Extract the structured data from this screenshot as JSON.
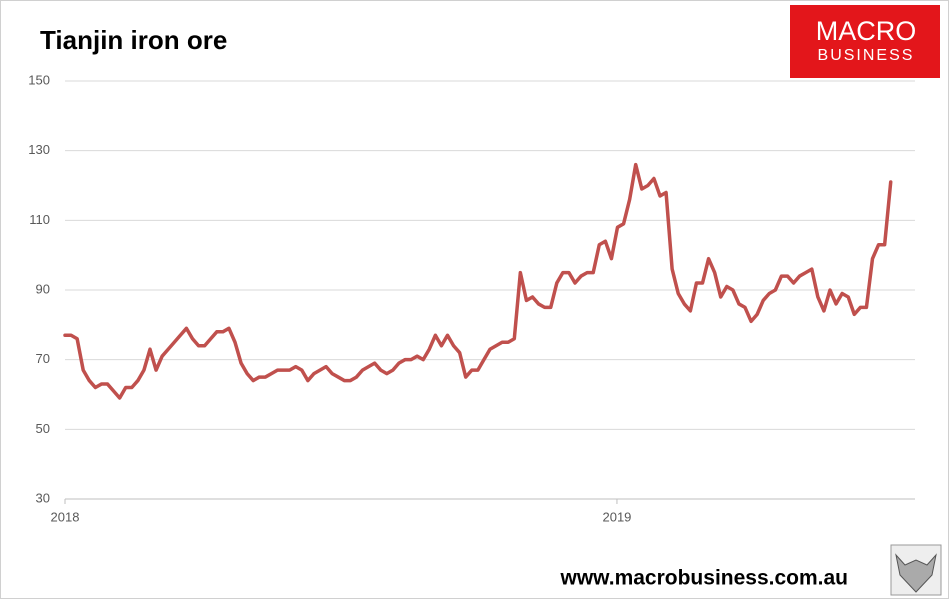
{
  "chart_data": {
    "type": "line",
    "title": "Tianjin iron ore",
    "logo": {
      "line1": "MACRO",
      "line2": "BUSINESS"
    },
    "footer": "www.macrobusiness.com.au",
    "color": "#c0504d",
    "x": [
      2018,
      2018.011,
      2018.022,
      2018.033,
      2018.044,
      2018.055,
      2018.066,
      2018.077,
      2018.088,
      2018.099,
      2018.11,
      2018.121,
      2018.132,
      2018.143,
      2018.154,
      2018.165,
      2018.176,
      2018.187,
      2018.198,
      2018.209,
      2018.22,
      2018.231,
      2018.242,
      2018.253,
      2018.264,
      2018.275,
      2018.286,
      2018.297,
      2018.308,
      2018.319,
      2018.33,
      2018.341,
      2018.352,
      2018.363,
      2018.374,
      2018.385,
      2018.396,
      2018.407,
      2018.418,
      2018.429,
      2018.44,
      2018.451,
      2018.462,
      2018.473,
      2018.484,
      2018.495,
      2018.506,
      2018.517,
      2018.528,
      2018.539,
      2018.55,
      2018.561,
      2018.572,
      2018.583,
      2018.594,
      2018.605,
      2018.616,
      2018.627,
      2018.638,
      2018.649,
      2018.66,
      2018.671,
      2018.682,
      2018.693,
      2018.704,
      2018.715,
      2018.726,
      2018.737,
      2018.748,
      2018.759,
      2018.77,
      2018.781,
      2018.792,
      2018.803,
      2018.814,
      2018.825,
      2018.836,
      2018.847,
      2018.858,
      2018.869,
      2018.88,
      2018.891,
      2018.902,
      2018.913,
      2018.924,
      2018.935,
      2018.946,
      2018.957,
      2018.968,
      2018.979,
      2018.99,
      2019.001,
      2019.012,
      2019.023,
      2019.034,
      2019.045,
      2019.056,
      2019.067,
      2019.078,
      2019.089,
      2019.1,
      2019.111,
      2019.122,
      2019.133,
      2019.144,
      2019.155,
      2019.166,
      2019.177,
      2019.188,
      2019.199,
      2019.21,
      2019.221,
      2019.232,
      2019.243,
      2019.254,
      2019.265,
      2019.276,
      2019.287,
      2019.298,
      2019.309,
      2019.32,
      2019.331,
      2019.342,
      2019.353,
      2019.364,
      2019.375,
      2019.386,
      2019.397,
      2019.408,
      2019.419,
      2019.43,
      2019.441,
      2019.452,
      2019.463,
      2019.474,
      2019.485,
      2019.496
    ],
    "values": [
      77,
      77,
      76,
      67,
      64,
      62,
      63,
      63,
      61,
      59,
      62,
      62,
      64,
      67,
      73,
      67,
      71,
      73,
      75,
      77,
      79,
      76,
      74,
      74,
      76,
      78,
      78,
      79,
      75,
      69,
      66,
      64,
      65,
      65,
      66,
      67,
      67,
      67,
      68,
      67,
      64,
      66,
      67,
      68,
      66,
      65,
      64,
      64,
      65,
      67,
      68,
      69,
      67,
      66,
      67,
      69,
      70,
      70,
      71,
      70,
      73,
      77,
      74,
      77,
      74,
      72,
      65,
      67,
      67,
      70,
      73,
      74,
      75,
      75,
      76,
      95,
      87,
      88,
      86,
      85,
      85,
      92,
      95,
      95,
      92,
      94,
      95,
      95,
      103,
      104,
      99,
      108,
      109,
      116,
      126,
      119,
      120,
      122,
      117,
      118,
      96,
      89,
      86,
      84,
      92,
      92,
      99,
      95,
      88,
      91,
      90,
      86,
      85,
      81,
      83,
      87,
      89,
      90,
      94,
      94,
      92,
      94,
      95,
      96,
      88,
      84,
      90,
      86,
      89,
      88,
      83,
      85,
      85,
      99,
      103,
      103,
      121
    ],
    "xlim": [
      2018,
      2019.54
    ],
    "xticks": [
      2018,
      2019
    ],
    "ylim": [
      30,
      150
    ],
    "yticks": [
      30,
      50,
      70,
      90,
      110,
      130,
      150
    ],
    "grid": true
  }
}
